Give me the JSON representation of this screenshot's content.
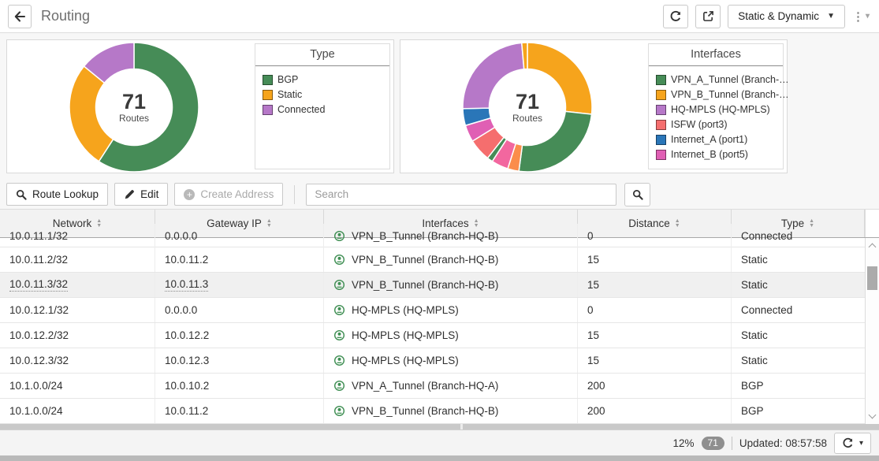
{
  "topbar": {
    "title": "Routing",
    "view_dropdown": "Static & Dynamic"
  },
  "chart_data": [
    {
      "type": "pie",
      "subtype": "donut",
      "title": "Type",
      "center_value": "71",
      "center_label": "Routes",
      "total": 71,
      "segments": [
        {
          "label": "BGP",
          "value": 42,
          "color": "#468c57"
        },
        {
          "label": "Static",
          "value": 19,
          "color": "#f6a41c"
        },
        {
          "label": "Connected",
          "value": 10,
          "color": "#b678c8"
        }
      ],
      "legend_title": "Type",
      "legend_position": "right",
      "legend": [
        {
          "label": "BGP",
          "color": "#468c57"
        },
        {
          "label": "Static",
          "color": "#f6a41c"
        },
        {
          "label": "Connected",
          "color": "#b678c8"
        }
      ]
    },
    {
      "type": "pie",
      "subtype": "donut",
      "title": "Interfaces",
      "center_value": "71",
      "center_label": "Routes",
      "total": 71,
      "segments": [
        {
          "label": "VPN_B_Tunnel (Branch-HQ-B)",
          "value": 19,
          "color": "#f6a41c"
        },
        {
          "label": "VPN_A_Tunnel (Branch-HQ-A)",
          "value": 18,
          "color": "#468c57"
        },
        {
          "label": "",
          "value": 2,
          "color": "#fb8d4b"
        },
        {
          "label": "",
          "value": 3,
          "color": "#f2679f"
        },
        {
          "label": "",
          "value": 1,
          "color": "#468c57"
        },
        {
          "label": "ISFW (port3)",
          "value": 4,
          "color": "#f56e6e"
        },
        {
          "label": "Internet_B (port5)",
          "value": 3,
          "color": "#e05fb4"
        },
        {
          "label": "Internet_A (port1)",
          "value": 3,
          "color": "#2a76b8"
        },
        {
          "label": "HQ-MPLS (HQ-MPLS)",
          "value": 17,
          "color": "#b678c8"
        },
        {
          "label": "",
          "value": 1,
          "color": "#f6a41c"
        }
      ],
      "legend_title": "Interfaces",
      "legend_position": "right",
      "legend": [
        {
          "label": "VPN_A_Tunnel (Branch-…",
          "color": "#468c57"
        },
        {
          "label": "VPN_B_Tunnel (Branch-…",
          "color": "#f6a41c"
        },
        {
          "label": "HQ-MPLS (HQ-MPLS)",
          "color": "#b678c8"
        },
        {
          "label": "ISFW (port3)",
          "color": "#f56e6e"
        },
        {
          "label": "Internet_A (port1)",
          "color": "#2a76b8"
        },
        {
          "label": "Internet_B (port5)",
          "color": "#e05fb4"
        }
      ]
    }
  ],
  "toolbar": {
    "route_lookup": "Route Lookup",
    "edit": "Edit",
    "create_address": "Create Address",
    "search_placeholder": "Search",
    "search_value": ""
  },
  "table": {
    "columns": [
      "Network",
      "Gateway IP",
      "Interfaces",
      "Distance",
      "Type"
    ],
    "rows": [
      {
        "network": "10.0.11.1/32",
        "gateway": "0.0.0.0",
        "interface": "VPN_B_Tunnel (Branch-HQ-B)",
        "distance": "0",
        "type": "Connected",
        "clipped": true
      },
      {
        "network": "10.0.11.2/32",
        "gateway": "10.0.11.2",
        "interface": "VPN_B_Tunnel (Branch-HQ-B)",
        "distance": "15",
        "type": "Static"
      },
      {
        "network": "10.0.11.3/32",
        "gateway": "10.0.11.3",
        "interface": "VPN_B_Tunnel (Branch-HQ-B)",
        "distance": "15",
        "type": "Static",
        "highlighted": true
      },
      {
        "network": "10.0.12.1/32",
        "gateway": "0.0.0.0",
        "interface": "HQ-MPLS (HQ-MPLS)",
        "distance": "0",
        "type": "Connected"
      },
      {
        "network": "10.0.12.2/32",
        "gateway": "10.0.12.2",
        "interface": "HQ-MPLS (HQ-MPLS)",
        "distance": "15",
        "type": "Static"
      },
      {
        "network": "10.0.12.3/32",
        "gateway": "10.0.12.3",
        "interface": "HQ-MPLS (HQ-MPLS)",
        "distance": "15",
        "type": "Static"
      },
      {
        "network": "10.1.0.0/24",
        "gateway": "10.0.10.2",
        "interface": "VPN_A_Tunnel (Branch-HQ-A)",
        "distance": "200",
        "type": "BGP"
      },
      {
        "network": "10.1.0.0/24",
        "gateway": "10.0.11.2",
        "interface": "VPN_B_Tunnel (Branch-HQ-B)",
        "distance": "200",
        "type": "BGP"
      }
    ]
  },
  "footer": {
    "percent": "12%",
    "count": "71",
    "updated": "Updated: 08:57:58"
  }
}
